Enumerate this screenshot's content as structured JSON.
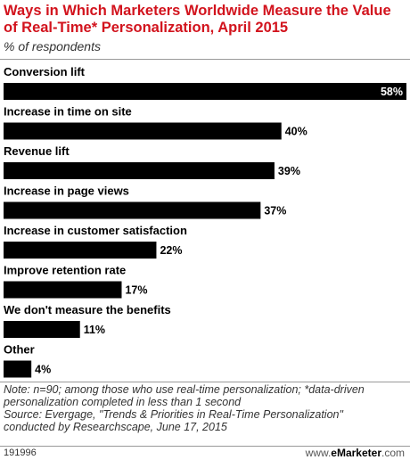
{
  "header": {
    "title": "Ways in Which Marketers Worldwide Measure the Value of Real-Time* Personalization, April 2015",
    "subtitle": "% of respondents"
  },
  "chart_data": {
    "type": "bar",
    "orientation": "horizontal",
    "categories": [
      "Conversion lift",
      "Increase in time on site",
      "Revenue lift",
      "Increase in page views",
      "Increase in customer satisfaction",
      "Improve retention rate",
      "We don't measure the benefits",
      "Other"
    ],
    "values": [
      58,
      40,
      39,
      37,
      22,
      17,
      11,
      4
    ],
    "value_labels": [
      "58%",
      "40%",
      "39%",
      "37%",
      "22%",
      "17%",
      "11%",
      "4%"
    ],
    "xlim": [
      0,
      58
    ],
    "bar_color": "#000000",
    "grid": false
  },
  "notes": {
    "line1": "Note: n=90; among those who use real-time personalization; *data-driven",
    "line2": "personalization completed in less than 1 second",
    "line3": "Source: Evergage, \"Trends & Priorities in Real-Time Personalization\"",
    "line4": "conducted by Researchscape, June 17, 2015"
  },
  "footer": {
    "chart_id": "191996",
    "brand_prefix": "www.",
    "brand_name": "eMarketer",
    "brand_suffix": ".com"
  }
}
